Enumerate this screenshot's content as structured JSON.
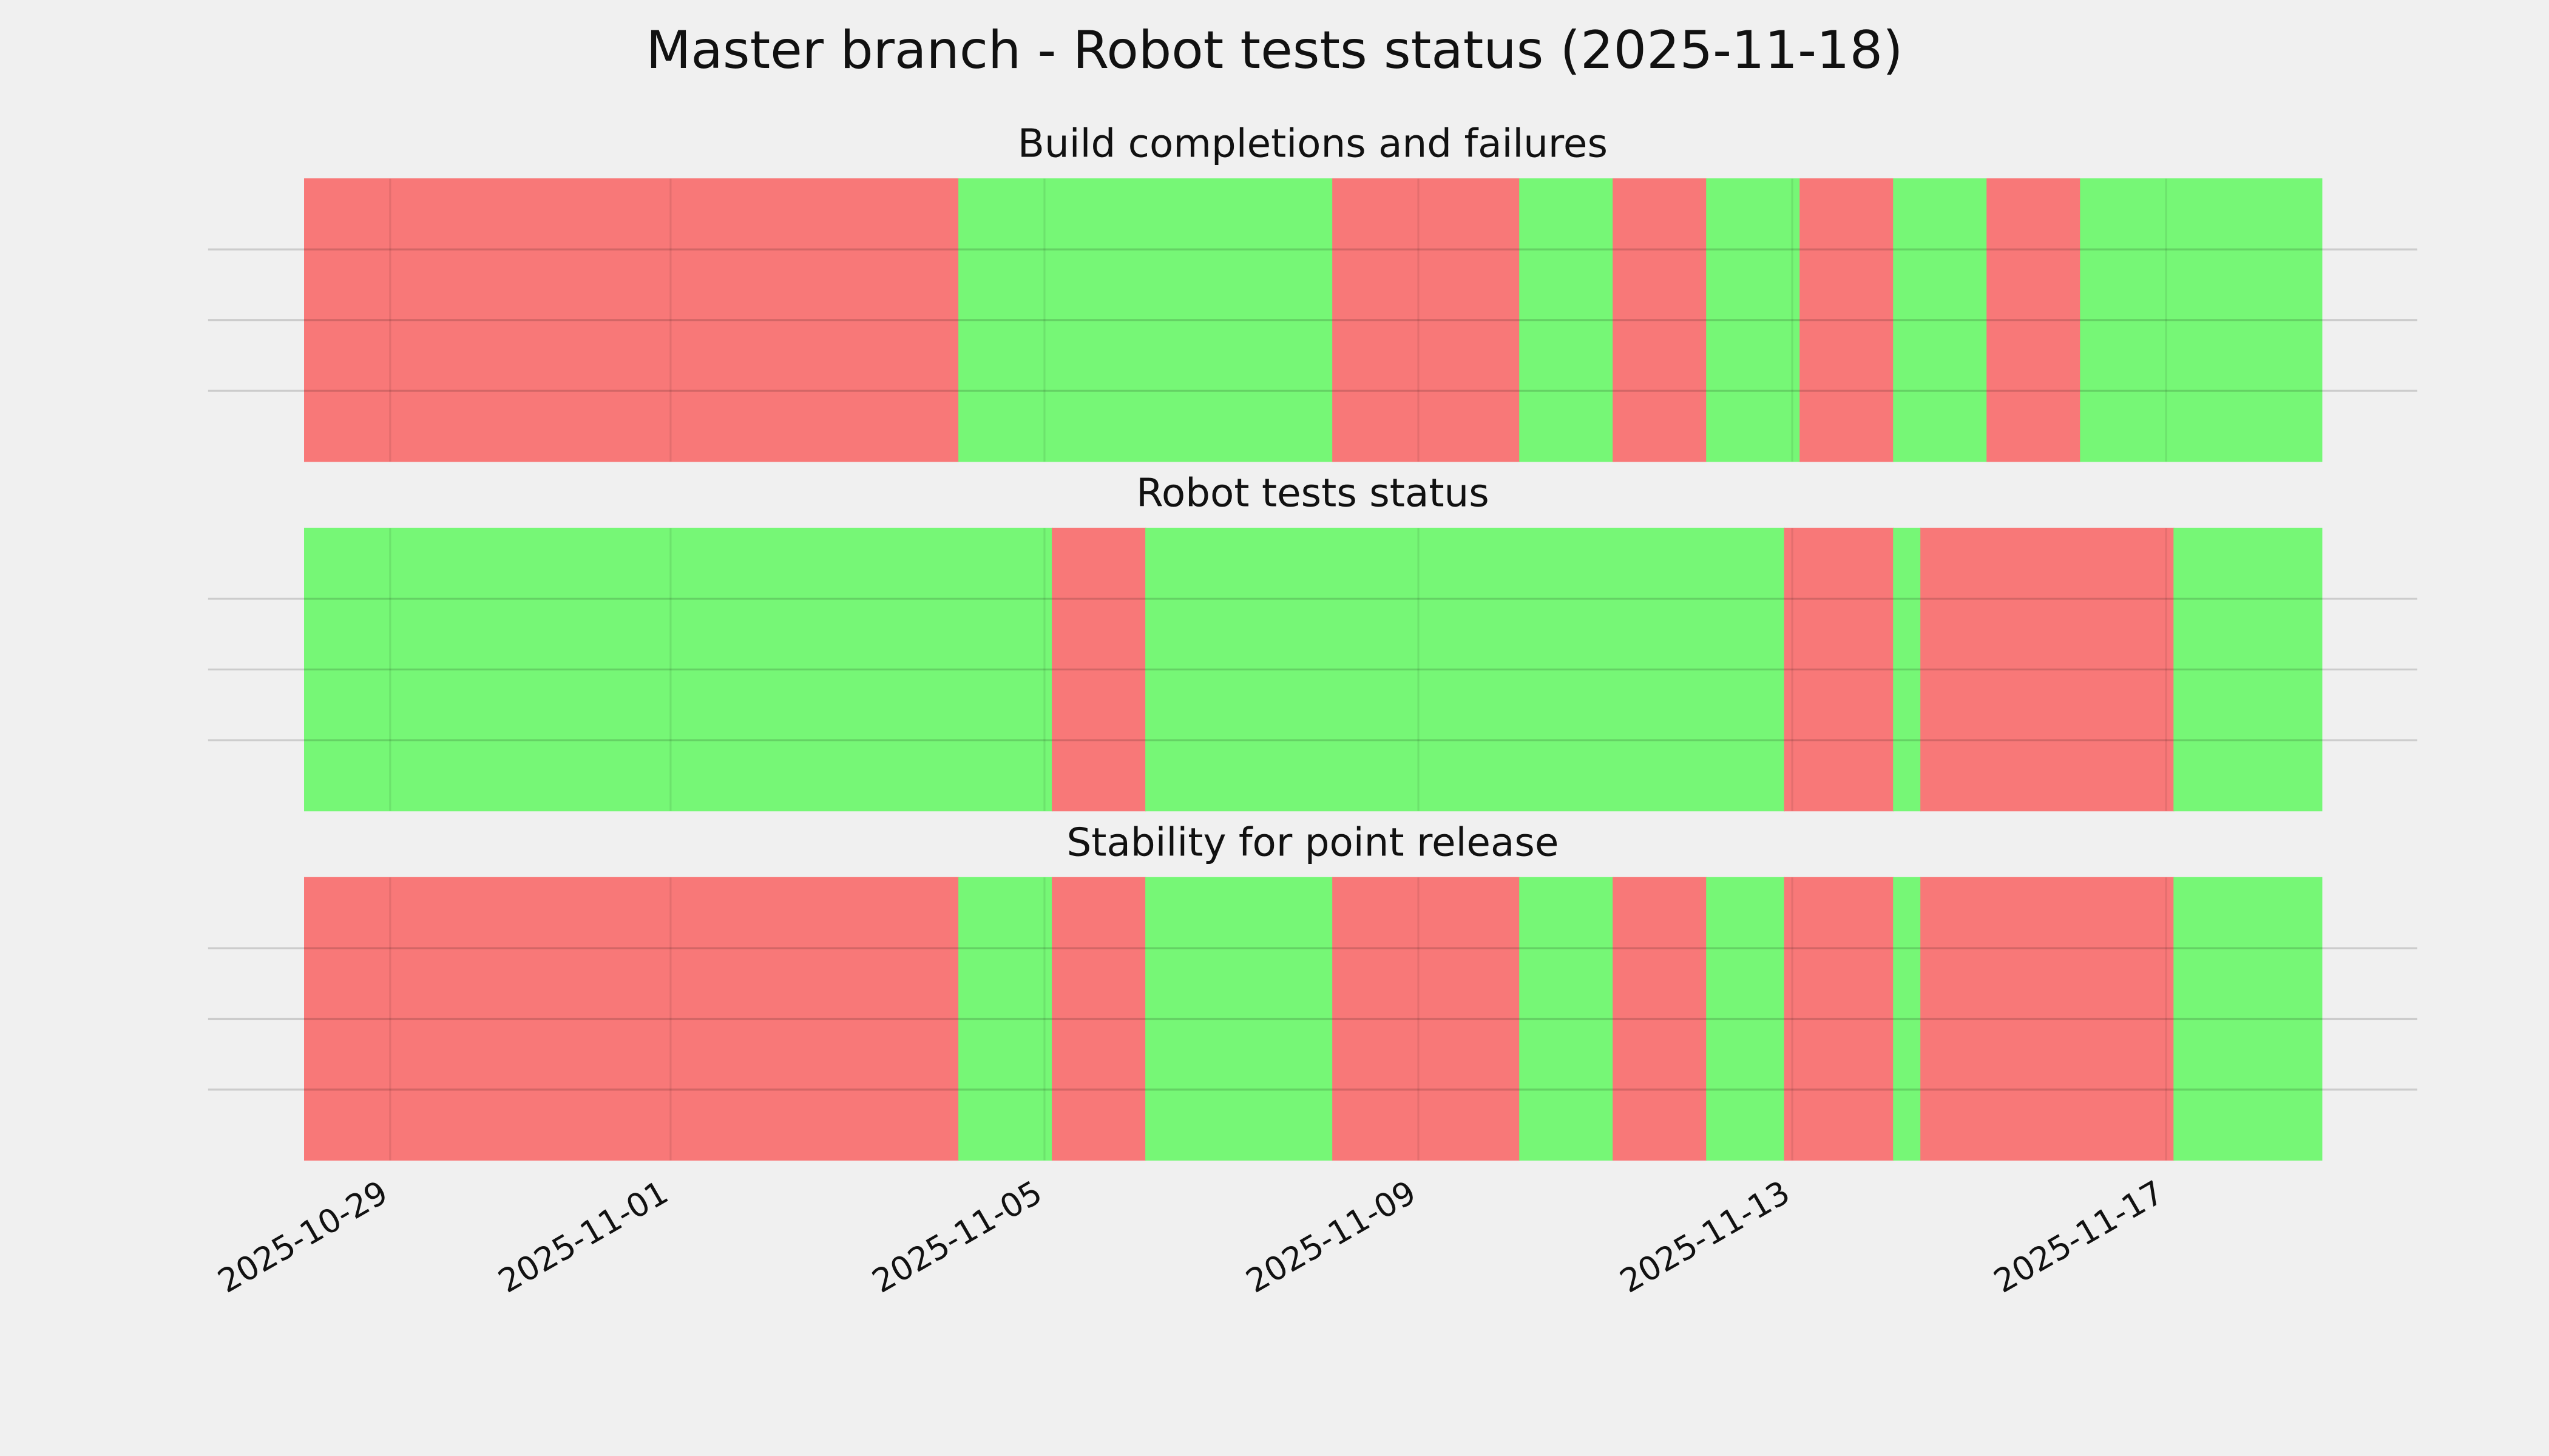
{
  "chart_data": {
    "type": "timeline",
    "title": "Master branch - Robot tests status (2025-11-18)",
    "xlim": [
      "2025-10-27T01:15",
      "2025-11-19T16:30"
    ],
    "xticks": [
      "2025-10-29",
      "2025-11-01",
      "2025-11-05",
      "2025-11-09",
      "2025-11-13",
      "2025-11-17"
    ],
    "ylim": [
      0,
      1
    ],
    "yticks": [
      0.25,
      0.5,
      0.75
    ],
    "grid": true,
    "panels": [
      {
        "title": "Build completions and failures",
        "x": [
          "2025-10-28T02:00",
          "2025-11-04T02:00",
          "2025-11-08T02:00",
          "2025-11-10T02:00",
          "2025-11-11T02:00",
          "2025-11-12T02:00",
          "2025-11-13T02:00",
          "2025-11-14T02:00",
          "2025-11-15T02:00",
          "2025-11-16T02:00",
          "2025-11-18T16:00"
        ],
        "colors": [
          "#f87878",
          "#76f776",
          "#f87878",
          "#76f776",
          "#f87878",
          "#76f776",
          "#f87878",
          "#76f776",
          "#f87878",
          "#76f776"
        ]
      },
      {
        "title": "Robot tests status",
        "x": [
          "2025-10-28T02:00",
          "2025-11-05T02:00",
          "2025-11-06T02:00",
          "2025-11-12T22:00",
          "2025-11-14T02:00",
          "2025-11-14T09:00",
          "2025-11-17T02:00",
          "2025-11-18T16:00"
        ],
        "colors": [
          "#76f776",
          "#f87878",
          "#76f776",
          "#f87878",
          "#76f776",
          "#f87878",
          "#76f776"
        ]
      },
      {
        "title": "Stability for point release",
        "x": [
          "2025-10-28T02:00",
          "2025-11-04T02:00",
          "2025-11-05T02:00",
          "2025-11-06T02:00",
          "2025-11-08T02:00",
          "2025-11-10T02:00",
          "2025-11-11T02:00",
          "2025-11-12T02:00",
          "2025-11-12T22:00",
          "2025-11-14T02:00",
          "2025-11-14T09:00",
          "2025-11-17T02:00",
          "2025-11-18T16:00"
        ],
        "colors": [
          "#f87878",
          "#76f776",
          "#f87878",
          "#76f776",
          "#f87878",
          "#76f776",
          "#f87878",
          "#76f776",
          "#f87878",
          "#76f776",
          "#f87878",
          "#76f776"
        ]
      }
    ]
  }
}
